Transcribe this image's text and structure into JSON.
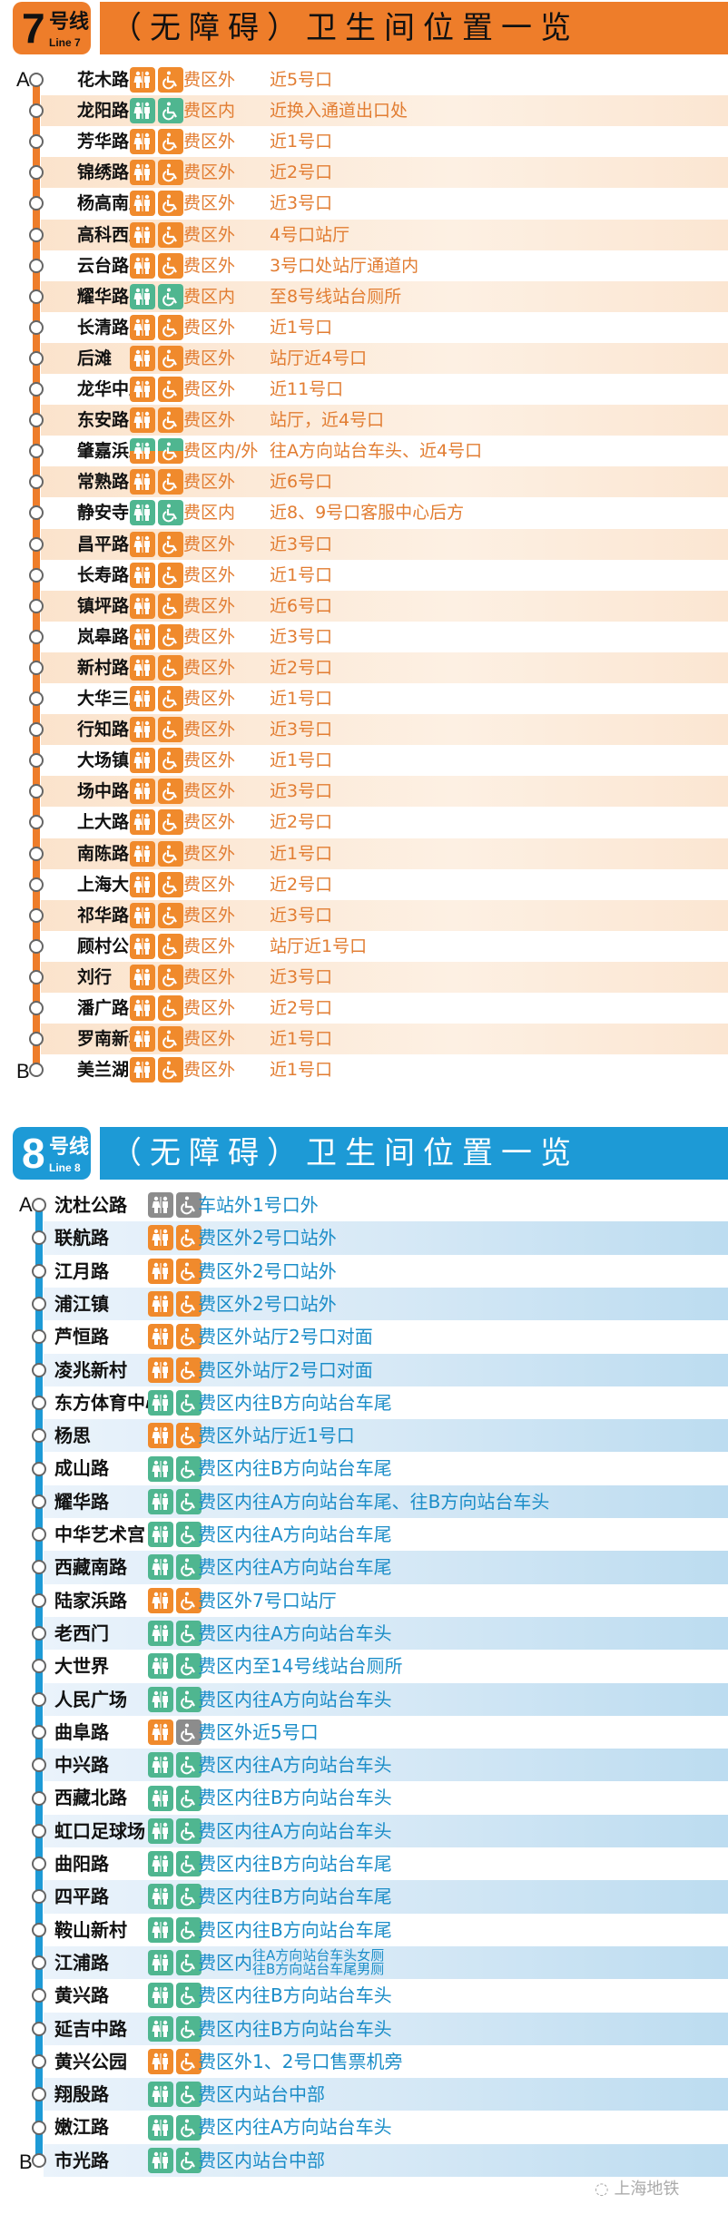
{
  "colors": {
    "orange": "#f08a2c",
    "green": "#4fb690",
    "gray": "#8c8c8c",
    "line7": "#ee7d2a",
    "line8": "#1d9ad6",
    "line7_text": "#e27d32",
    "line8_text": "#1b8dc8"
  },
  "lines": [
    {
      "number": "7",
      "suffix": "号线",
      "english": "Line 7",
      "title": "（无障碍）卫生间位置一览",
      "end_a": "A",
      "end_b": "B",
      "stations": [
        {
          "name": "花木路",
          "zone": "费区外",
          "location": "近5号口",
          "toilet": "orange",
          "access": "orange"
        },
        {
          "name": "龙阳路",
          "zone": "费区内",
          "location": "近换入通道出口处",
          "toilet": "green",
          "access": "green"
        },
        {
          "name": "芳华路",
          "zone": "费区外",
          "location": "近1号口",
          "toilet": "orange",
          "access": "orange"
        },
        {
          "name": "锦绣路",
          "zone": "费区外",
          "location": "近2号口",
          "toilet": "orange",
          "access": "orange"
        },
        {
          "name": "杨高南路",
          "zone": "费区外",
          "location": "近3号口",
          "toilet": "orange",
          "access": "orange"
        },
        {
          "name": "高科西路",
          "zone": "费区外",
          "location": "4号口站厅",
          "toilet": "orange",
          "access": "orange"
        },
        {
          "name": "云台路",
          "zone": "费区外",
          "location": "3号口处站厅通道内",
          "toilet": "orange",
          "access": "orange"
        },
        {
          "name": "耀华路",
          "zone": "费区内",
          "location": "至8号线站台厕所",
          "toilet": "green",
          "access": "green"
        },
        {
          "name": "长清路",
          "zone": "费区外",
          "location": "近1号口",
          "toilet": "orange",
          "access": "orange"
        },
        {
          "name": "后滩",
          "zone": "费区外",
          "location": "站厅近4号口",
          "toilet": "orange",
          "access": "orange"
        },
        {
          "name": "龙华中路",
          "zone": "费区外",
          "location": "近11号口",
          "toilet": "orange",
          "access": "orange"
        },
        {
          "name": "东安路",
          "zone": "费区外",
          "location": "站厅，近4号口",
          "toilet": "orange",
          "access": "orange"
        },
        {
          "name": "肇嘉浜路",
          "zone": "费区内/外",
          "location": "往A方向站台车头、近4号口",
          "toilet": "split",
          "access": "split"
        },
        {
          "name": "常熟路",
          "zone": "费区外",
          "location": "近6号口",
          "toilet": "orange",
          "access": "orange"
        },
        {
          "name": "静安寺",
          "zone": "费区内",
          "location": "近8、9号口客服中心后方",
          "toilet": "green",
          "access": "green"
        },
        {
          "name": "昌平路",
          "zone": "费区外",
          "location": "近3号口",
          "toilet": "orange",
          "access": "orange"
        },
        {
          "name": "长寿路",
          "zone": "费区外",
          "location": "近1号口",
          "toilet": "orange",
          "access": "orange"
        },
        {
          "name": "镇坪路",
          "zone": "费区外",
          "location": "近6号口",
          "toilet": "orange",
          "access": "orange"
        },
        {
          "name": "岚皋路",
          "zone": "费区外",
          "location": "近3号口",
          "toilet": "orange",
          "access": "orange"
        },
        {
          "name": "新村路",
          "zone": "费区外",
          "location": "近2号口",
          "toilet": "orange",
          "access": "orange"
        },
        {
          "name": "大华三路",
          "zone": "费区外",
          "location": "近1号口",
          "toilet": "orange",
          "access": "orange"
        },
        {
          "name": "行知路",
          "zone": "费区外",
          "location": "近3号口",
          "toilet": "orange",
          "access": "orange"
        },
        {
          "name": "大场镇",
          "zone": "费区外",
          "location": "近1号口",
          "toilet": "orange",
          "access": "orange"
        },
        {
          "name": "场中路",
          "zone": "费区外",
          "location": "近3号口",
          "toilet": "orange",
          "access": "orange"
        },
        {
          "name": "上大路",
          "zone": "费区外",
          "location": "近2号口",
          "toilet": "orange",
          "access": "orange"
        },
        {
          "name": "南陈路",
          "zone": "费区外",
          "location": "近1号口",
          "toilet": "orange",
          "access": "orange"
        },
        {
          "name": "上海大学",
          "zone": "费区外",
          "location": "近2号口",
          "toilet": "orange",
          "access": "orange"
        },
        {
          "name": "祁华路",
          "zone": "费区外",
          "location": "近3号口",
          "toilet": "orange",
          "access": "orange"
        },
        {
          "name": "顾村公园",
          "zone": "费区外",
          "location": "站厅近1号口",
          "toilet": "orange",
          "access": "orange"
        },
        {
          "name": "刘行",
          "zone": "费区外",
          "location": "近3号口",
          "toilet": "orange",
          "access": "orange"
        },
        {
          "name": "潘广路",
          "zone": "费区外",
          "location": "近2号口",
          "toilet": "orange",
          "access": "orange"
        },
        {
          "name": "罗南新村",
          "zone": "费区外",
          "location": "近1号口",
          "toilet": "orange",
          "access": "orange"
        },
        {
          "name": "美兰湖",
          "zone": "费区外",
          "location": "近1号口",
          "toilet": "orange",
          "access": "orange"
        }
      ]
    },
    {
      "number": "8",
      "suffix": "号线",
      "english": "Line 8",
      "title": "（无障碍）卫生间位置一览",
      "end_a": "A",
      "end_b": "B",
      "stations": [
        {
          "name": "沈杜公路",
          "zone": "车站外",
          "location": "1号口外",
          "toilet": "gray",
          "access": "gray"
        },
        {
          "name": "联航路",
          "zone": "费区外",
          "location": "2号口站外",
          "toilet": "orange",
          "access": "orange"
        },
        {
          "name": "江月路",
          "zone": "费区外",
          "location": "2号口站外",
          "toilet": "orange",
          "access": "orange"
        },
        {
          "name": "浦江镇",
          "zone": "费区外",
          "location": "2号口站外",
          "toilet": "orange",
          "access": "orange"
        },
        {
          "name": "芦恒路",
          "zone": "费区外",
          "location": "站厅2号口对面",
          "toilet": "orange",
          "access": "orange"
        },
        {
          "name": "凌兆新村",
          "zone": "费区外",
          "location": "站厅2号口对面",
          "toilet": "orange",
          "access": "orange"
        },
        {
          "name": "东方体育中心",
          "zone": "费区内",
          "location": "往B方向站台车尾",
          "toilet": "green",
          "access": "green"
        },
        {
          "name": "杨思",
          "zone": "费区外",
          "location": "站厅近1号口",
          "toilet": "orange",
          "access": "orange"
        },
        {
          "name": "成山路",
          "zone": "费区内",
          "location": "往B方向站台车尾",
          "toilet": "green",
          "access": "green"
        },
        {
          "name": "耀华路",
          "zone": "费区内",
          "location": "往A方向站台车尾、往B方向站台车头",
          "toilet": "green",
          "access": "green"
        },
        {
          "name": "中华艺术宫",
          "zone": "费区内",
          "location": "往A方向站台车尾",
          "toilet": "green",
          "access": "green"
        },
        {
          "name": "西藏南路",
          "zone": "费区内",
          "location": "往A方向站台车尾",
          "toilet": "green",
          "access": "green"
        },
        {
          "name": "陆家浜路",
          "zone": "费区外",
          "location": "7号口站厅",
          "toilet": "orange",
          "access": "orange"
        },
        {
          "name": "老西门",
          "zone": "费区内",
          "location": "往A方向站台车头",
          "toilet": "green",
          "access": "green"
        },
        {
          "name": "大世界",
          "zone": "费区内",
          "location": "至14号线站台厕所",
          "toilet": "green",
          "access": "green"
        },
        {
          "name": "人民广场",
          "zone": "费区内",
          "location": "往A方向站台车头",
          "toilet": "green",
          "access": "green"
        },
        {
          "name": "曲阜路",
          "zone": "费区外",
          "location": "近5号口",
          "toilet": "orange",
          "access": "gray"
        },
        {
          "name": "中兴路",
          "zone": "费区内",
          "location": "往A方向站台车头",
          "toilet": "green",
          "access": "green"
        },
        {
          "name": "西藏北路",
          "zone": "费区内",
          "location": "往B方向站台车头",
          "toilet": "green",
          "access": "green"
        },
        {
          "name": "虹口足球场",
          "zone": "费区内",
          "location": "往A方向站台车头",
          "toilet": "green",
          "access": "green"
        },
        {
          "name": "曲阳路",
          "zone": "费区内",
          "location": "往B方向站台车尾",
          "toilet": "green",
          "access": "green"
        },
        {
          "name": "四平路",
          "zone": "费区内",
          "location": "往B方向站台车尾",
          "toilet": "green",
          "access": "green"
        },
        {
          "name": "鞍山新村",
          "zone": "费区内",
          "location": "往B方向站台车尾",
          "toilet": "green",
          "access": "green"
        },
        {
          "name": "江浦路",
          "zone": "费区内",
          "location": "往A方向站台车头女厕",
          "location2": "往B方向站台车尾男厕",
          "toilet": "green",
          "access": "green"
        },
        {
          "name": "黄兴路",
          "zone": "费区内",
          "location": "往B方向站台车头",
          "toilet": "green",
          "access": "green"
        },
        {
          "name": "延吉中路",
          "zone": "费区内",
          "location": "往B方向站台车头",
          "toilet": "green",
          "access": "green"
        },
        {
          "name": "黄兴公园",
          "zone": "费区外",
          "location": "1、2号口售票机旁",
          "toilet": "orange",
          "access": "orange"
        },
        {
          "name": "翔殷路",
          "zone": "费区内",
          "location": "站台中部",
          "toilet": "green",
          "access": "green"
        },
        {
          "name": "嫩江路",
          "zone": "费区内",
          "location": "往A方向站台车头",
          "toilet": "green",
          "access": "green"
        },
        {
          "name": "市光路",
          "zone": "费区内",
          "location": "站台中部",
          "toilet": "green",
          "access": "green"
        }
      ]
    }
  ],
  "watermark": "上海地铁",
  "watermark_icon": "wechat-icon"
}
